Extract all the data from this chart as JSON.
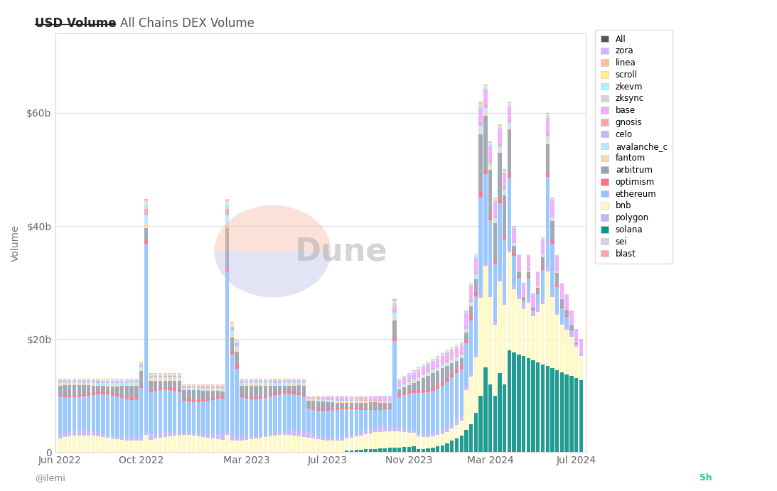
{
  "title_bold": "USD Volume",
  "title_regular": "All Chains DEX Volume",
  "ylabel": "Volume",
  "background_color": "#ffffff",
  "plot_bg_color": "#ffffff",
  "border_color": "#e8d0c0",
  "legend_entries": [
    {
      "label": "All",
      "color": "#555555"
    },
    {
      "label": "zora",
      "color": "#d8b4fe"
    },
    {
      "label": "linea",
      "color": "#fbbf9a"
    },
    {
      "label": "scroll",
      "color": "#fef08a"
    },
    {
      "label": "zkevm",
      "color": "#a5f3fc"
    },
    {
      "label": "zksync",
      "color": "#d1d5db"
    },
    {
      "label": "base",
      "color": "#f0abfc"
    },
    {
      "label": "gnosis",
      "color": "#fca5a5"
    },
    {
      "label": "celo",
      "color": "#c4b5fd"
    },
    {
      "label": "avalanche_c",
      "color": "#bae6fd"
    },
    {
      "label": "fantom",
      "color": "#fed7aa"
    },
    {
      "label": "arbitrum",
      "color": "#9ca3af"
    },
    {
      "label": "optimism",
      "color": "#fb7185"
    },
    {
      "label": "ethereum",
      "color": "#93c5fd"
    },
    {
      "label": "bnb",
      "color": "#fef9c3"
    },
    {
      "label": "polygon",
      "color": "#c4b5fd"
    },
    {
      "label": "solana",
      "color": "#0d9488"
    },
    {
      "label": "sei",
      "color": "#d1d5db"
    },
    {
      "label": "blast",
      "color": "#fca5a5"
    }
  ],
  "n_bars": 110,
  "bar_width": 0.8,
  "watermark": "Dune",
  "footer_left": "@ilemi",
  "footer_right": "5h"
}
